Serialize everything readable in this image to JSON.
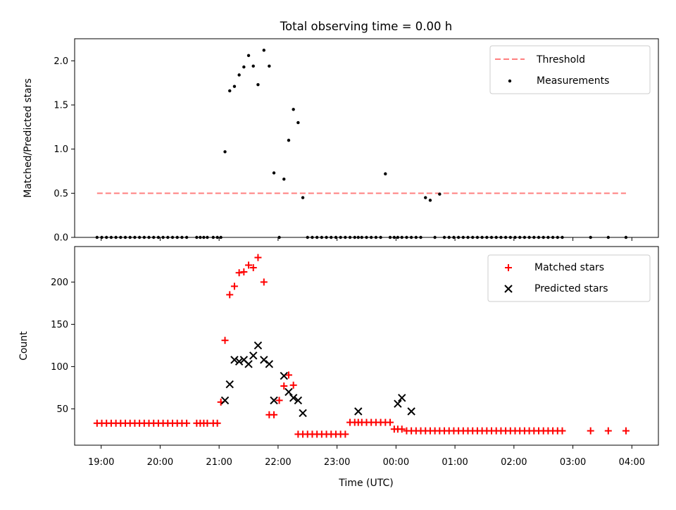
{
  "chart_data": [
    {
      "type": "scatter",
      "title": "Total observing time = 0.00 h",
      "xlabel": "",
      "ylabel": "Matched/Predicted stars",
      "ylim": [
        0,
        2.25
      ],
      "xlim_hours": [
        18.55,
        28.45
      ],
      "yticks": [
        0.0,
        0.5,
        1.0,
        1.5,
        2.0
      ],
      "ytick_labels": [
        "0.0",
        "0.5",
        "1.0",
        "1.5",
        "2.0"
      ],
      "grid": false,
      "legend_placement": "top-right",
      "threshold": {
        "name": "Threshold",
        "value": 0.5,
        "x_range": [
          18.93,
          27.9
        ],
        "color": "#ff7f7f"
      },
      "series": [
        {
          "name": "Measurements",
          "color": "#000000",
          "marker": "dot",
          "x": [
            18.93,
            19.01,
            19.09,
            19.17,
            19.25,
            19.33,
            19.41,
            19.49,
            19.57,
            19.65,
            19.73,
            19.81,
            19.89,
            19.97,
            20.05,
            20.13,
            20.21,
            20.29,
            20.37,
            20.45,
            20.62,
            20.68,
            20.74,
            20.8,
            20.9,
            20.97,
            21.03,
            21.1,
            21.18,
            21.26,
            21.34,
            21.42,
            21.5,
            21.58,
            21.66,
            21.76,
            21.85,
            21.93,
            22.02,
            22.1,
            22.18,
            22.26,
            22.34,
            22.42,
            22.5,
            22.58,
            22.66,
            22.74,
            22.82,
            22.9,
            22.98,
            23.06,
            23.14,
            23.22,
            23.3,
            23.36,
            23.42,
            23.5,
            23.58,
            23.66,
            23.74,
            23.82,
            23.9,
            23.97,
            24.03,
            24.1,
            24.18,
            24.26,
            24.34,
            24.42,
            24.5,
            24.58,
            24.66,
            24.74,
            24.82,
            24.9,
            24.98,
            25.06,
            25.14,
            25.22,
            25.3,
            25.38,
            25.46,
            25.54,
            25.62,
            25.7,
            25.78,
            25.86,
            25.94,
            26.02,
            26.1,
            26.18,
            26.26,
            26.34,
            26.42,
            26.5,
            26.58,
            26.66,
            26.74,
            26.82,
            27.3,
            27.6,
            27.9
          ],
          "y": [
            0,
            0,
            0,
            0,
            0,
            0,
            0,
            0,
            0,
            0,
            0,
            0,
            0,
            0,
            0,
            0,
            0,
            0,
            0,
            0,
            0,
            0,
            0,
            0,
            0,
            0,
            0,
            0.97,
            1.66,
            1.71,
            1.84,
            1.93,
            2.06,
            1.94,
            1.73,
            2.12,
            1.94,
            0.73,
            0,
            0.66,
            1.1,
            1.45,
            1.3,
            0.45,
            0,
            0,
            0,
            0,
            0,
            0,
            0,
            0,
            0,
            0,
            0,
            0,
            0,
            0,
            0,
            0,
            0,
            0.72,
            0,
            0,
            0,
            0,
            0,
            0,
            0,
            0,
            0.45,
            0.42,
            0,
            0.49,
            0,
            0,
            0,
            0,
            0,
            0,
            0,
            0,
            0,
            0,
            0,
            0,
            0,
            0,
            0,
            0,
            0,
            0,
            0,
            0,
            0,
            0,
            0,
            0,
            0,
            0,
            0,
            0,
            0
          ]
        }
      ]
    },
    {
      "type": "scatter",
      "title": "",
      "xlabel": "Time (UTC)",
      "ylabel": "Count",
      "ylim": [
        7,
        242
      ],
      "xlim_hours": [
        18.55,
        28.45
      ],
      "yticks": [
        50,
        100,
        150,
        200
      ],
      "ytick_labels": [
        "50",
        "100",
        "150",
        "200"
      ],
      "xticks_hours": [
        19,
        20,
        21,
        22,
        23,
        24,
        25,
        26,
        27,
        28
      ],
      "xtick_labels": [
        "19:00",
        "20:00",
        "21:00",
        "22:00",
        "23:00",
        "00:00",
        "01:00",
        "02:00",
        "03:00",
        "04:00"
      ],
      "grid": false,
      "legend_placement": "top-right",
      "series": [
        {
          "name": "Matched stars",
          "color": "#ff0000",
          "marker": "plus",
          "x": [
            18.93,
            19.01,
            19.09,
            19.17,
            19.25,
            19.33,
            19.41,
            19.49,
            19.57,
            19.65,
            19.73,
            19.81,
            19.89,
            19.97,
            20.05,
            20.13,
            20.21,
            20.29,
            20.37,
            20.45,
            20.62,
            20.68,
            20.74,
            20.8,
            20.9,
            20.97,
            21.03,
            21.1,
            21.18,
            21.26,
            21.34,
            21.42,
            21.5,
            21.58,
            21.66,
            21.76,
            21.85,
            21.93,
            22.02,
            22.1,
            22.18,
            22.26,
            22.34,
            22.42,
            22.5,
            22.58,
            22.66,
            22.74,
            22.82,
            22.9,
            22.98,
            23.06,
            23.14,
            23.22,
            23.3,
            23.36,
            23.42,
            23.5,
            23.58,
            23.66,
            23.74,
            23.82,
            23.9,
            23.97,
            24.03,
            24.1,
            24.18,
            24.26,
            24.34,
            24.42,
            24.5,
            24.58,
            24.66,
            24.74,
            24.82,
            24.9,
            24.98,
            25.06,
            25.14,
            25.22,
            25.3,
            25.38,
            25.46,
            25.54,
            25.62,
            25.7,
            25.78,
            25.86,
            25.94,
            26.02,
            26.1,
            26.18,
            26.26,
            26.34,
            26.42,
            26.5,
            26.58,
            26.66,
            26.74,
            26.82,
            27.3,
            27.6,
            27.9
          ],
          "y": [
            33,
            33,
            33,
            33,
            33,
            33,
            33,
            33,
            33,
            33,
            33,
            33,
            33,
            33,
            33,
            33,
            33,
            33,
            33,
            33,
            33,
            33,
            33,
            33,
            33,
            33,
            58,
            131,
            185,
            195,
            211,
            212,
            220,
            217,
            229,
            200,
            43,
            43,
            60,
            77,
            90,
            78,
            20,
            20,
            20,
            20,
            20,
            20,
            20,
            20,
            20,
            20,
            20,
            34,
            34,
            34,
            34,
            34,
            34,
            34,
            34,
            34,
            34,
            26,
            26,
            26,
            24,
            24,
            24,
            24,
            24,
            24,
            24,
            24,
            24,
            24,
            24,
            24,
            24,
            24,
            24,
            24,
            24,
            24,
            24,
            24,
            24,
            24,
            24,
            24,
            24,
            24,
            24,
            24,
            24,
            24,
            24,
            24,
            24,
            24,
            24,
            24,
            24
          ]
        },
        {
          "name": "Predicted stars",
          "color": "#000000",
          "marker": "x",
          "x": [
            21.1,
            21.18,
            21.26,
            21.34,
            21.42,
            21.5,
            21.58,
            21.66,
            21.76,
            21.85,
            21.93,
            22.1,
            22.18,
            22.26,
            22.34,
            22.42,
            23.36,
            24.03,
            24.1,
            24.26
          ],
          "y": [
            60,
            79,
            108,
            106,
            108,
            103,
            113,
            125,
            108,
            103,
            60,
            89,
            70,
            63,
            60,
            45,
            47,
            56,
            63,
            47
          ]
        }
      ]
    }
  ]
}
